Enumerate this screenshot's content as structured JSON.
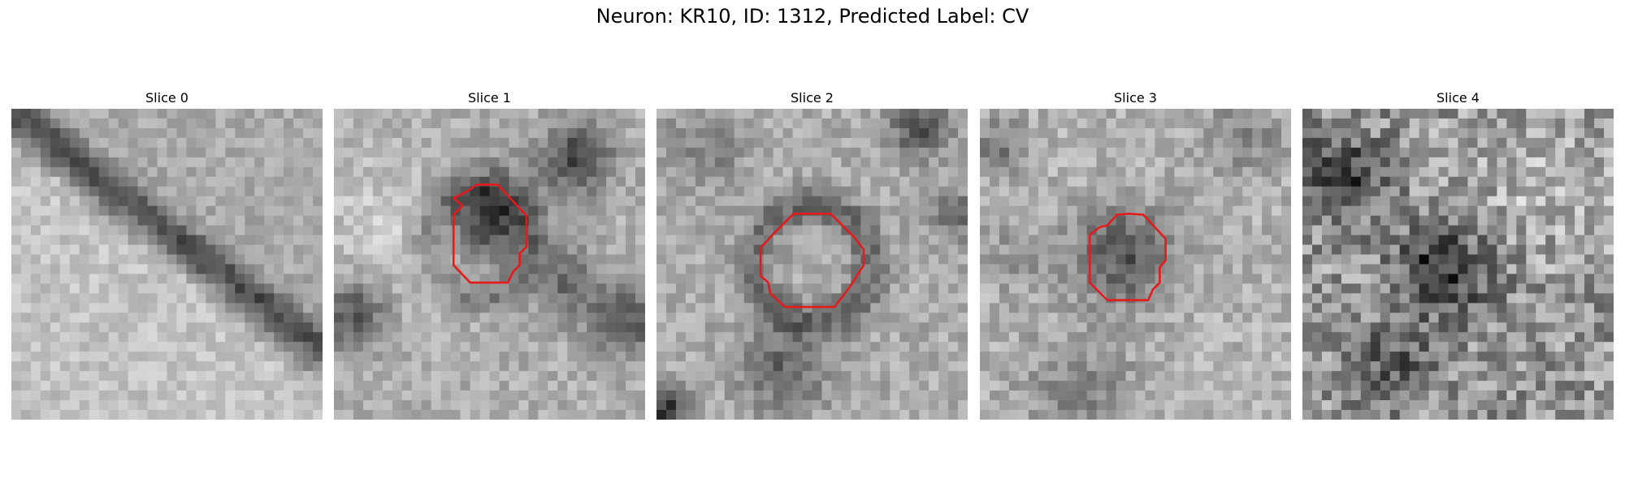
{
  "figure": {
    "title": "Neuron: KR10, ID: 1312, Predicted Label: CV"
  },
  "panels": [
    {
      "title": "Slice 0",
      "has_contour": false,
      "contour_color": "#e41a1c"
    },
    {
      "title": "Slice 1",
      "has_contour": true,
      "contour_color": "#e41a1c"
    },
    {
      "title": "Slice 2",
      "has_contour": true,
      "contour_color": "#e41a1c"
    },
    {
      "title": "Slice 3",
      "has_contour": true,
      "contour_color": "#e41a1c"
    },
    {
      "title": "Slice 4",
      "has_contour": false,
      "contour_color": "#e41a1c"
    }
  ],
  "image": {
    "colormap": "grayscale"
  }
}
